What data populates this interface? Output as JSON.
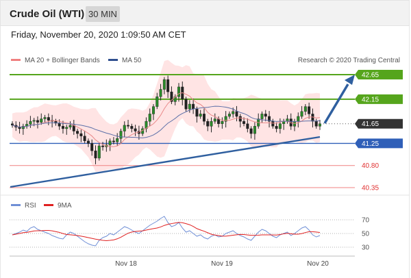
{
  "header": {
    "title": "Crude Oil (WTI)",
    "timeframe": "30 MIN"
  },
  "datetime": "Friday, November 20, 2020 1:09:50 AM CET",
  "legend": {
    "bollinger": "MA 20 + Bollinger Bands",
    "ma50": "MA 50",
    "rsi": "RSI",
    "rsi_ma": "9MA"
  },
  "copyright": "Research © 2020 Trading Central",
  "colors": {
    "resistance": "#55a51c",
    "support": "#2f5fb8",
    "support_weak": "#f08080",
    "current": "#333333",
    "bollinger": "#ffd9d9",
    "ma20": "#e98a8a",
    "ma50": "#5b6fa8",
    "trend": "#2f5f9f",
    "rsi": "#6f8fd6",
    "rsi_ma": "#e02020"
  },
  "chart_data": {
    "type": "candlestick",
    "y_range": [
      40.1,
      42.8
    ],
    "levels": [
      {
        "label": "42.65",
        "value": 42.65,
        "kind": "resistance"
      },
      {
        "label": "42.15",
        "value": 42.15,
        "kind": "resistance"
      },
      {
        "label": "41.65",
        "value": 41.65,
        "kind": "current"
      },
      {
        "label": "41.25",
        "value": 41.25,
        "kind": "support"
      },
      {
        "label": "40.80",
        "value": 40.8,
        "kind": "support_weak"
      },
      {
        "label": "40.35",
        "value": 40.35,
        "kind": "support_weak"
      }
    ],
    "x_labels": [
      "Nov 18",
      "Nov 19",
      "Nov 20"
    ],
    "close": [
      41.62,
      41.58,
      41.55,
      41.6,
      41.64,
      41.7,
      41.72,
      41.68,
      41.75,
      41.78,
      41.72,
      41.7,
      41.66,
      41.6,
      41.55,
      41.58,
      41.62,
      41.5,
      41.45,
      41.4,
      41.3,
      41.25,
      41.1,
      40.95,
      41.2,
      41.18,
      41.22,
      41.3,
      41.28,
      41.35,
      41.5,
      41.62,
      41.6,
      41.55,
      41.5,
      41.45,
      41.55,
      41.7,
      41.85,
      42.0,
      42.2,
      42.35,
      42.55,
      42.3,
      42.1,
      42.2,
      42.4,
      42.15,
      41.95,
      42.05,
      41.95,
      41.8,
      41.85,
      41.7,
      41.6,
      41.7,
      41.75,
      41.65,
      41.7,
      41.8,
      41.85,
      41.9,
      41.8,
      41.7,
      41.65,
      41.55,
      41.45,
      41.6,
      41.75,
      41.85,
      41.8,
      41.7,
      41.6,
      41.55,
      41.65,
      41.7,
      41.75,
      41.6,
      41.7,
      41.8,
      41.9,
      42.0,
      41.85,
      41.7,
      41.6,
      41.65
    ],
    "rsi": [
      48,
      50,
      52,
      55,
      53,
      58,
      60,
      56,
      54,
      52,
      50,
      47,
      45,
      43,
      42,
      48,
      52,
      50,
      46,
      42,
      38,
      35,
      33,
      32,
      40,
      44,
      46,
      50,
      48,
      52,
      56,
      60,
      58,
      55,
      52,
      50,
      54,
      58,
      62,
      65,
      68,
      72,
      75,
      66,
      60,
      62,
      66,
      58,
      52,
      54,
      50,
      46,
      48,
      44,
      42,
      46,
      48,
      45,
      46,
      50,
      52,
      54,
      50,
      47,
      45,
      42,
      40,
      46,
      52,
      56,
      54,
      50,
      46,
      44,
      48,
      50,
      52,
      47,
      50,
      54,
      58,
      60,
      55,
      48,
      45,
      47
    ],
    "rsi_ticks": [
      30,
      50,
      70
    ],
    "rsi_y_range": [
      20,
      80
    ]
  }
}
